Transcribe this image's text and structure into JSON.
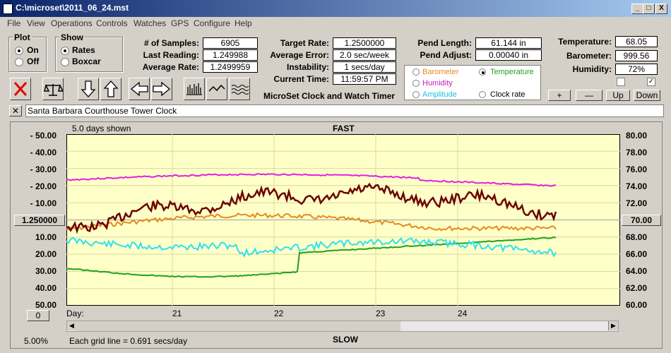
{
  "window": {
    "title": "C:\\microset\\2011_06_24.mst",
    "min": "_",
    "max": "□",
    "close": "X"
  },
  "menu": [
    "File",
    "View",
    "Operations",
    "Controls",
    "Watches",
    "GPS",
    "Configure",
    "Help"
  ],
  "plot": {
    "title": "Plot",
    "on": "On",
    "off": "Off",
    "selected": "On"
  },
  "show": {
    "title": "Show",
    "rates": "Rates",
    "boxcar": "Boxcar",
    "selected": "Rates"
  },
  "fields": {
    "samples_label": "# of Samples:",
    "samples": "6905",
    "last_label": "Last Reading:",
    "last": "1.249988",
    "avg_rate_label": "Average Rate:",
    "avg_rate": "1.2499959",
    "target_label": "Target Rate:",
    "target": "1.2500000",
    "avg_err_label": "Average Error:",
    "avg_err": "2.0 sec/week",
    "instab_label": "Instability:",
    "instab": "1 secs/day",
    "time_label": "Current Time:",
    "time": "11:59:57 PM",
    "pend_len_label": "Pend Length:",
    "pend_len": "61.144 in",
    "pend_adj_label": "Pend Adjust:",
    "pend_adj": "0.00040 in",
    "temp_label": "Temperature:",
    "temp": "68.05",
    "baro_label": "Barometer:",
    "baro": "999.56",
    "hum_label": "Humidity:",
    "hum": "72%"
  },
  "app_title": "MicroSet Clock and Watch Timer",
  "overlay_options": {
    "barometer": "Barometer",
    "temperature": "Temperature",
    "humidity": "Humidity",
    "amplitude": "Amplitude",
    "clock_rate": "Clock rate",
    "selected": "Temperature"
  },
  "adjust_buttons": [
    "+",
    "—",
    "Up",
    "Down"
  ],
  "checkboxes": [
    false,
    true
  ],
  "clock_name": "Santa Barbara Courthouse Tower Clock",
  "graph": {
    "days_shown": "5.0 days shown",
    "fast": "FAST",
    "slow": "SLOW",
    "center_left": "1.250000",
    "center_right": "70.00",
    "bottom_left_btn": "0",
    "zoom": "5.00%",
    "grid_note": "Each grid line = 0.691 secs/day",
    "day_label": "Day:",
    "days": [
      "21",
      "22",
      "23",
      "24"
    ],
    "left_axis": [
      "50.00",
      "40.00",
      "30.00",
      "20.00",
      "10.00",
      "",
      "10.00",
      "20.00",
      "30.00",
      "40.00",
      "50.00"
    ],
    "right_axis": [
      "80.00",
      "78.00",
      "76.00",
      "74.00",
      "72.00",
      "",
      "68.00",
      "66.00",
      "64.00",
      "62.00",
      "60.00"
    ],
    "colors": {
      "rate": "#6b0000",
      "temperature": "#e58a1f",
      "humidity": "#e020e0",
      "amplitude": "#30e0f0",
      "barometer": "#20a020",
      "background": "#ffffc8"
    }
  }
}
